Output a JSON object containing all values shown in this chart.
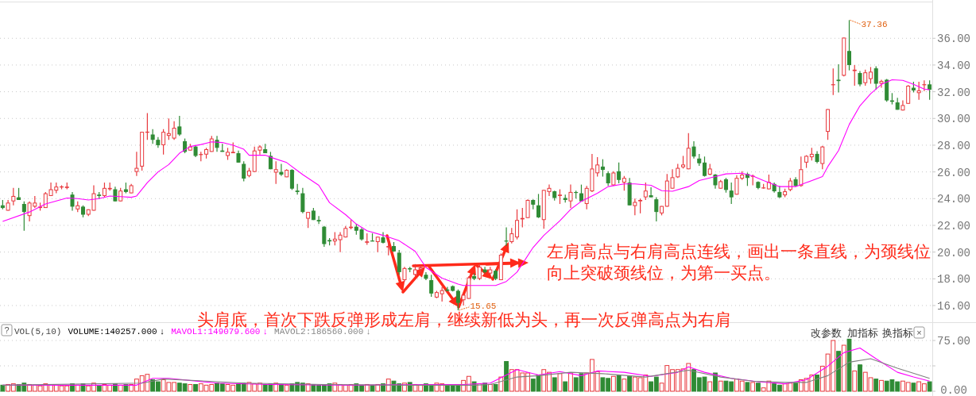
{
  "chart_data": [
    {
      "type": "candlestick",
      "categories": [
        null,
        null,
        null,
        null,
        null,
        null,
        null,
        null,
        null,
        null,
        null,
        null,
        null,
        null,
        null,
        null,
        null,
        null,
        null,
        null,
        null,
        null,
        null,
        null,
        null,
        null,
        null,
        null,
        null,
        null,
        null,
        null,
        null,
        null,
        null,
        null,
        null,
        null,
        null,
        null,
        null,
        null,
        null,
        null,
        null,
        null,
        null,
        null,
        null,
        null,
        null,
        null,
        null,
        null,
        null,
        null,
        null,
        null,
        null,
        null,
        null,
        null,
        null,
        null,
        null,
        null,
        null,
        null,
        null,
        null,
        null,
        null,
        null,
        null,
        null,
        null,
        null,
        null,
        null,
        null,
        null,
        null,
        null,
        null,
        null,
        null,
        null,
        null,
        null,
        null,
        null,
        null,
        null,
        null,
        null,
        null,
        null,
        null,
        null,
        null,
        null,
        null,
        null,
        null,
        null,
        null,
        null,
        null,
        null,
        null,
        null,
        null,
        null,
        null,
        null,
        null,
        null,
        null,
        null,
        null,
        null,
        null,
        null,
        null,
        null,
        null,
        null,
        null,
        null,
        null,
        null,
        null,
        null,
        null,
        null,
        null,
        null,
        null,
        null,
        null,
        null,
        null,
        null,
        null,
        null,
        null,
        null,
        null,
        null,
        null,
        null,
        null,
        null,
        null,
        null,
        null,
        null,
        null,
        null,
        null,
        null,
        null,
        null,
        null,
        null,
        null,
        null,
        null,
        null,
        null,
        null,
        null,
        null,
        null
      ],
      "ohlc": [
        [
          23.5,
          23.9,
          23.2,
          23.3
        ],
        [
          23.1,
          23.9,
          23.1,
          23.7
        ],
        [
          23.8,
          24.8,
          23.5,
          24.2
        ],
        [
          24.1,
          24.8,
          23.9,
          23.9
        ],
        [
          23.6,
          23.8,
          21.6,
          23.0
        ],
        [
          22.7,
          23.8,
          22.3,
          23.7
        ],
        [
          23.4,
          24.2,
          23.3,
          23.7
        ],
        [
          23.3,
          23.7,
          23.1,
          23.4
        ],
        [
          23.3,
          24.5,
          23.3,
          24.4
        ],
        [
          24.2,
          25.2,
          24.2,
          24.7
        ],
        [
          24.6,
          25.2,
          24.4,
          24.9
        ],
        [
          24.85,
          25.0,
          24.7,
          24.9
        ],
        [
          24.8,
          25.2,
          24.7,
          24.9
        ],
        [
          24.3,
          24.5,
          23.1,
          23.4
        ],
        [
          23.2,
          23.8,
          23.0,
          23.5
        ],
        [
          23.4,
          23.5,
          22.6,
          22.8
        ],
        [
          22.8,
          23.2,
          22.7,
          23.2
        ],
        [
          23.1,
          25.0,
          23.1,
          24.4
        ],
        [
          24.3,
          24.5,
          24.0,
          24.2
        ],
        [
          24.2,
          25.2,
          24.1,
          24.8
        ],
        [
          24.7,
          25.2,
          24.6,
          24.8
        ],
        [
          24.7,
          24.9,
          23.8,
          23.8
        ],
        [
          23.8,
          24.8,
          23.8,
          24.6
        ],
        [
          24.7,
          25.2,
          24.4,
          24.5
        ],
        [
          24.4,
          25.1,
          24.4,
          25.0
        ],
        [
          26.0,
          27.5,
          25.7,
          26.3
        ],
        [
          26.4,
          29.0,
          26.1,
          29.0
        ],
        [
          28.95,
          30.4,
          28.4,
          29.0
        ],
        [
          28.8,
          29.2,
          28.1,
          28.4
        ],
        [
          28.4,
          28.6,
          27.8,
          28.0
        ],
        [
          28.0,
          29.2,
          27.3,
          29.0
        ],
        [
          28.7,
          30.0,
          28.4,
          28.9
        ],
        [
          28.5,
          29.8,
          28.4,
          29.3
        ],
        [
          29.4,
          30.2,
          28.7,
          28.8
        ],
        [
          28.3,
          28.5,
          27.4,
          27.5
        ],
        [
          27.6,
          28.1,
          27.6,
          27.9
        ],
        [
          27.9,
          28.0,
          27.1,
          27.2
        ],
        [
          27.3,
          27.5,
          26.8,
          27.3
        ],
        [
          27.3,
          27.8,
          27.0,
          27.7
        ],
        [
          27.5,
          28.7,
          27.5,
          28.5
        ],
        [
          28.4,
          28.7,
          27.5,
          27.8
        ],
        [
          27.6,
          28.1,
          27.5,
          27.5
        ],
        [
          27.2,
          27.8,
          26.9,
          27.5
        ],
        [
          27.4,
          28.2,
          27.4,
          27.5
        ],
        [
          27.4,
          27.6,
          26.7,
          26.7
        ],
        [
          26.6,
          26.8,
          25.3,
          25.5
        ],
        [
          25.7,
          26.3,
          25.6,
          26.1
        ],
        [
          26.0,
          27.9,
          26.0,
          27.6
        ],
        [
          27.6,
          28.0,
          27.3,
          27.9
        ],
        [
          27.7,
          28.1,
          27.4,
          27.4
        ],
        [
          27.2,
          27.5,
          26.2,
          26.2
        ],
        [
          25.95,
          26.8,
          25.1,
          26.2
        ],
        [
          26.0,
          26.6,
          25.7,
          25.8
        ],
        [
          25.6,
          26.2,
          25.6,
          26.15
        ],
        [
          26.15,
          26.2,
          24.65,
          24.75
        ],
        [
          24.6,
          25.1,
          24.3,
          24.5
        ],
        [
          24.4,
          24.8,
          22.9,
          23.0
        ],
        [
          22.5,
          23.0,
          21.8,
          23.0
        ],
        [
          23.1,
          23.3,
          22.4,
          22.4
        ],
        [
          22.4,
          22.7,
          22.1,
          22.3
        ],
        [
          21.9,
          21.95,
          20.4,
          20.6
        ],
        [
          20.9,
          21.05,
          20.5,
          20.8
        ],
        [
          20.8,
          21.5,
          20.5,
          21.0
        ],
        [
          20.9,
          21.5,
          20.0,
          21.3
        ],
        [
          21.1,
          21.95,
          21.1,
          21.8
        ],
        [
          21.8,
          22.4,
          21.7,
          21.9
        ],
        [
          21.9,
          22.1,
          21.3,
          21.6
        ],
        [
          21.7,
          21.8,
          20.85,
          20.95
        ],
        [
          20.7,
          21.4,
          20.55,
          20.8
        ],
        [
          20.85,
          21.4,
          20.8,
          20.8
        ],
        [
          20.75,
          21.15,
          20.0,
          21.15
        ],
        [
          21.1,
          21.5,
          20.65,
          20.7
        ],
        [
          20.35,
          20.95,
          19.75,
          20.45
        ],
        [
          20.45,
          20.75,
          20.05,
          20.05
        ],
        [
          19.95,
          20.15,
          18.3,
          18.5
        ],
        [
          17.9,
          18.9,
          17.8,
          18.8
        ],
        [
          18.8,
          18.9,
          18.5,
          18.7
        ],
        [
          18.3,
          19.1,
          18.2,
          18.7
        ],
        [
          18.7,
          19.0,
          18.5,
          18.85
        ],
        [
          18.3,
          18.5,
          17.9,
          18.0
        ],
        [
          17.9,
          18.3,
          16.65,
          16.9
        ],
        [
          16.6,
          17.1,
          16.55,
          17.0
        ],
        [
          16.85,
          17.4,
          16.3,
          17.15
        ],
        [
          17.2,
          17.4,
          17.05,
          17.1
        ],
        [
          17.45,
          17.5,
          17.05,
          17.1
        ],
        [
          17.1,
          17.2,
          15.65,
          16.2
        ],
        [
          16.4,
          16.9,
          16.0,
          16.8
        ],
        [
          16.5,
          18.2,
          16.5,
          18.1
        ],
        [
          18.2,
          18.4,
          17.9,
          18.0
        ],
        [
          18.0,
          19.1,
          17.9,
          18.9
        ],
        [
          18.7,
          18.9,
          18.4,
          18.5
        ],
        [
          18.4,
          18.9,
          18.3,
          18.7
        ],
        [
          18.6,
          18.7,
          17.9,
          18.0
        ],
        [
          17.9,
          19.9,
          17.9,
          19.8
        ],
        [
          20.85,
          21.85,
          20.45,
          20.8
        ],
        [
          20.75,
          21.8,
          20.65,
          21.4
        ],
        [
          21.1,
          23.2,
          20.95,
          22.4
        ],
        [
          22.45,
          23.3,
          21.85,
          22.55
        ],
        [
          22.55,
          23.95,
          22.55,
          23.9
        ],
        [
          23.9,
          23.95,
          23.2,
          23.55
        ],
        [
          23.5,
          24.35,
          22.55,
          22.6
        ],
        [
          22.4,
          24.65,
          21.75,
          24.65
        ],
        [
          24.5,
          25.05,
          24.2,
          24.8
        ],
        [
          24.55,
          24.6,
          23.85,
          24.05
        ],
        [
          24.2,
          24.7,
          23.6,
          24.3
        ],
        [
          24.05,
          24.3,
          23.7,
          23.9
        ],
        [
          23.8,
          25.05,
          23.3,
          24.5
        ],
        [
          24.47,
          24.6,
          24.0,
          24.45
        ],
        [
          24.4,
          25.05,
          23.8,
          23.8
        ],
        [
          23.6,
          24.95,
          23.2,
          24.8
        ],
        [
          24.55,
          27.35,
          24.5,
          26.25
        ],
        [
          25.9,
          27.1,
          25.65,
          26.55
        ],
        [
          26.4,
          26.95,
          25.65,
          26.15
        ],
        [
          25.9,
          26.05,
          24.95,
          25.15
        ],
        [
          25.0,
          26.05,
          24.95,
          25.95
        ],
        [
          26.05,
          26.7,
          25.15,
          25.4
        ],
        [
          25.2,
          25.7,
          24.6,
          25.55
        ],
        [
          25.2,
          25.55,
          23.5,
          23.5
        ],
        [
          23.45,
          24.0,
          22.75,
          23.75
        ],
        [
          23.8,
          24.0,
          22.9,
          23.9
        ],
        [
          24.1,
          25.2,
          23.9,
          24.6
        ],
        [
          24.25,
          24.85,
          24.1,
          24.1
        ],
        [
          23.95,
          24.1,
          22.3,
          23.0
        ],
        [
          22.9,
          23.45,
          22.75,
          23.45
        ],
        [
          23.4,
          25.85,
          23.4,
          25.35
        ],
        [
          24.75,
          26.2,
          24.75,
          25.6
        ],
        [
          25.6,
          26.6,
          25.55,
          26.3
        ],
        [
          26.35,
          27.2,
          26.25,
          26.55
        ],
        [
          26.2,
          28.9,
          26.2,
          27.8
        ],
        [
          27.9,
          28.3,
          27.0,
          27.15
        ],
        [
          27.0,
          27.35,
          26.45,
          26.65
        ],
        [
          26.7,
          27.15,
          25.65,
          25.7
        ],
        [
          25.8,
          26.6,
          25.75,
          26.25
        ],
        [
          25.8,
          25.85,
          24.75,
          25.0
        ],
        [
          24.75,
          25.4,
          24.75,
          25.3
        ],
        [
          25.45,
          25.55,
          24.45,
          24.65
        ],
        [
          24.6,
          25.2,
          23.6,
          24.1
        ],
        [
          24.3,
          25.75,
          24.3,
          25.55
        ],
        [
          25.5,
          26.05,
          25.4,
          25.8
        ],
        [
          25.85,
          25.95,
          24.95,
          25.55
        ],
        [
          25.65,
          25.8,
          25.0,
          25.7
        ],
        [
          25.25,
          25.3,
          24.7,
          24.8
        ],
        [
          24.8,
          25.1,
          24.75,
          24.8
        ],
        [
          24.7,
          25.8,
          24.7,
          25.25
        ],
        [
          25.1,
          25.2,
          24.45,
          24.55
        ],
        [
          24.5,
          24.95,
          24.05,
          24.1
        ],
        [
          24.25,
          24.75,
          24.1,
          24.55
        ],
        [
          24.65,
          25.55,
          24.55,
          25.35
        ],
        [
          25.45,
          25.6,
          24.9,
          24.95
        ],
        [
          24.95,
          27.15,
          24.9,
          26.2
        ],
        [
          26.7,
          27.25,
          26.3,
          27.2
        ],
        [
          27.1,
          27.8,
          26.85,
          27.35
        ],
        [
          27.35,
          27.55,
          26.65,
          26.75
        ],
        [
          26.6,
          27.95,
          26.2,
          27.9
        ],
        [
          29.0,
          30.7,
          28.4,
          30.7
        ],
        [
          32.5,
          33.75,
          31.75,
          32.55
        ],
        [
          32.9,
          34.05,
          31.95,
          32.8
        ],
        [
          33.2,
          36.05,
          33.15,
          36.05
        ],
        [
          35.05,
          37.36,
          33.6,
          34.0
        ],
        [
          33.55,
          34.0,
          32.45,
          33.65
        ],
        [
          33.4,
          33.55,
          32.4,
          32.55
        ],
        [
          32.65,
          33.65,
          32.45,
          33.45
        ],
        [
          32.95,
          33.85,
          32.6,
          33.5
        ],
        [
          33.75,
          33.9,
          32.15,
          32.6
        ],
        [
          32.6,
          32.9,
          32.3,
          32.8
        ],
        [
          32.9,
          32.95,
          31.25,
          31.35
        ],
        [
          31.35,
          31.9,
          31.05,
          31.25
        ],
        [
          31.2,
          31.55,
          30.65,
          30.65
        ],
        [
          30.6,
          31.35,
          30.6,
          31.0
        ],
        [
          31.1,
          32.5,
          31.1,
          32.45
        ],
        [
          32.3,
          32.75,
          31.95,
          32.1
        ],
        [
          31.9,
          32.75,
          31.4,
          32.1
        ],
        [
          32.5,
          32.85,
          32.05,
          32.55
        ],
        [
          32.55,
          32.85,
          31.4,
          32.15
        ]
      ],
      "series": [
        {
          "type": "line",
          "color": "#ff00ff",
          "values": [
            22.3,
            null,
            null,
            null,
            null,
            23.0,
            null,
            null,
            23.6,
            null,
            null,
            null,
            24.05,
            null,
            24.0,
            null,
            23.9,
            null,
            24.0,
            null,
            24.2,
            null,
            24.15,
            null,
            24.1,
            24.2,
            null,
            25.2,
            null,
            26.0,
            null,
            26.55,
            null,
            27.4,
            null,
            27.9,
            null,
            28.05,
            null,
            28.25,
            null,
            28.2,
            null,
            28.0,
            null,
            27.7,
            27.25,
            null,
            null,
            27.25,
            27.1,
            null,
            null,
            26.7,
            null,
            null,
            25.8,
            null,
            null,
            25.0,
            null,
            23.7,
            null,
            null,
            22.8,
            null,
            22.1,
            null,
            21.6,
            null,
            null,
            21.25,
            null,
            null,
            20.85,
            null,
            null,
            20.05,
            null,
            18.85,
            null,
            null,
            18.05,
            null,
            null,
            17.6,
            17.5,
            null,
            null,
            null,
            null,
            17.5,
            17.5,
            null,
            17.8,
            null,
            18.5,
            null,
            null,
            20.35,
            null,
            21.25,
            null,
            null,
            22.35,
            null,
            23.2,
            null,
            23.8,
            null,
            null,
            24.4,
            null,
            24.9,
            null,
            null,
            25.1,
            null,
            25.1,
            null,
            null,
            25.0,
            null,
            24.6,
            null,
            24.55,
            null,
            null,
            24.9,
            null,
            25.35,
            null,
            null,
            25.65,
            null,
            25.85,
            null,
            null,
            25.9,
            null,
            25.7,
            null,
            25.35,
            null,
            null,
            24.9,
            null,
            null,
            24.9,
            null,
            25.2,
            null,
            null,
            25.65,
            26.4,
            null,
            27.6,
            null,
            29.55,
            null,
            30.95,
            null,
            31.85,
            null,
            32.55,
            null,
            32.9,
            null,
            32.85,
            null,
            32.55,
            null,
            32.2,
            32.15
          ]
        }
      ],
      "ylim": [
        14.8,
        38.7
      ],
      "yticks": [
        {
          "value": 16,
          "label": "16.00"
        },
        {
          "value": 18,
          "label": "18.00"
        },
        {
          "value": 20,
          "label": "20.00"
        },
        {
          "value": 22,
          "label": "22.00"
        },
        {
          "value": 24,
          "label": "24.00"
        },
        {
          "value": 26,
          "label": "26.00"
        },
        {
          "value": 28,
          "label": "28.00"
        },
        {
          "value": 30,
          "label": "30.00"
        },
        {
          "value": 32,
          "label": "32.00"
        },
        {
          "value": 34,
          "label": "34.00"
        },
        {
          "value": 36,
          "label": "36.00"
        }
      ],
      "grid": "y",
      "marker": "none",
      "annotations": [
        "37.36",
        "15.65",
        "头肩底，首次下跌反弹形成左肩，继续新低为头，再一次反弹高点为右肩",
        "左肩高点与右肩高点连线，画出一条直线，为颈线位",
        "向上突破颈线位，为第一买点。"
      ]
    },
    {
      "type": "bar",
      "categories": [
        null,
        null,
        null,
        null,
        null,
        null,
        null,
        null,
        null,
        null,
        null,
        null,
        null,
        null,
        null,
        null,
        null,
        null,
        null,
        null,
        null,
        null,
        null,
        null,
        null,
        null,
        null,
        null,
        null,
        null,
        null,
        null,
        null,
        null,
        null,
        null,
        null,
        null,
        null,
        null,
        null,
        null,
        null,
        null,
        null,
        null,
        null,
        null,
        null,
        null,
        null,
        null,
        null,
        null,
        null,
        null,
        null,
        null,
        null,
        null,
        null,
        null,
        null,
        null,
        null,
        null,
        null,
        null,
        null,
        null,
        null,
        null,
        null,
        null,
        null,
        null,
        null,
        null,
        null,
        null,
        null,
        null,
        null,
        null,
        null,
        null,
        null,
        null,
        null,
        null,
        null,
        null,
        null,
        null,
        null,
        null,
        null,
        null,
        null,
        null,
        null,
        null,
        null,
        null,
        null,
        null,
        null,
        null,
        null,
        null,
        null,
        null,
        null,
        null,
        null,
        null,
        null,
        null,
        null,
        null,
        null,
        null,
        null,
        null,
        null,
        null,
        null,
        null,
        null,
        null,
        null,
        null,
        null,
        null,
        null,
        null,
        null,
        null,
        null,
        null,
        null,
        null,
        null,
        null,
        null,
        null,
        null,
        null,
        null,
        null,
        null,
        null,
        null,
        null,
        null,
        null,
        null,
        null,
        null,
        null,
        null,
        null,
        null,
        null,
        null,
        null,
        null,
        null,
        null,
        null,
        null,
        null,
        null,
        null
      ],
      "series": [
        {
          "colors": [
            "#2f8b35",
            "#e8383d",
            "#e8383d",
            "#2f8b35",
            "#2f8b35",
            "#e8383d",
            "#e8383d",
            "#e8383d",
            "#e8383d",
            "#e8383d",
            "#e8383d",
            "#e8383d",
            "#e8383d",
            "#2f8b35",
            "#e8383d",
            "#2f8b35",
            "#e8383d",
            "#e8383d",
            "#2f8b35",
            "#e8383d",
            "#e8383d",
            "#2f8b35",
            "#e8383d",
            "#2f8b35",
            "#e8383d",
            "#e8383d",
            "#e8383d",
            "#e8383d",
            "#2f8b35",
            "#2f8b35",
            "#e8383d",
            "#e8383d",
            "#e8383d",
            "#2f8b35",
            "#2f8b35",
            "#e8383d",
            "#2f8b35",
            "#e8383d",
            "#e8383d",
            "#e8383d",
            "#2f8b35",
            "#2f8b35",
            "#e8383d",
            "#e8383d",
            "#2f8b35",
            "#2f8b35",
            "#e8383d",
            "#e8383d",
            "#e8383d",
            "#2f8b35",
            "#2f8b35",
            "#e8383d",
            "#2f8b35",
            "#e8383d",
            "#2f8b35",
            "#2f8b35",
            "#2f8b35",
            "#e8383d",
            "#2f8b35",
            "#2f8b35",
            "#2f8b35",
            "#2f8b35",
            "#e8383d",
            "#e8383d",
            "#e8383d",
            "#e8383d",
            "#2f8b35",
            "#2f8b35",
            "#e8383d",
            "#2f8b35",
            "#e8383d",
            "#2f8b35",
            "#e8383d",
            "#2f8b35",
            "#2f8b35",
            "#e8383d",
            "#2f8b35",
            "#e8383d",
            "#e8383d",
            "#2f8b35",
            "#2f8b35",
            "#e8383d",
            "#e8383d",
            "#2f8b35",
            "#2f8b35",
            "#2f8b35",
            "#e8383d",
            "#e8383d",
            "#2f8b35",
            "#e8383d",
            "#2f8b35",
            "#e8383d",
            "#2f8b35",
            "#e8383d",
            "#2f8b35",
            "#e8383d",
            "#e8383d",
            "#e8383d",
            "#e8383d",
            "#2f8b35",
            "#2f8b35",
            "#e8383d",
            "#e8383d",
            "#2f8b35",
            "#e8383d",
            "#2f8b35",
            "#e8383d",
            "#2f8b35",
            "#2f8b35",
            "#e8383d",
            "#e8383d",
            "#e8383d",
            "#2f8b35",
            "#2f8b35",
            "#e8383d",
            "#2f8b35",
            "#e8383d",
            "#2f8b35",
            "#e8383d",
            "#e8383d",
            "#e8383d",
            "#2f8b35",
            "#2f8b35",
            "#e8383d",
            "#e8383d",
            "#e8383d",
            "#e8383d",
            "#e8383d",
            "#e8383d",
            "#2f8b35",
            "#2f8b35",
            "#2f8b35",
            "#e8383d",
            "#2f8b35",
            "#e8383d",
            "#2f8b35",
            "#2f8b35",
            "#e8383d",
            "#e8383d",
            "#2f8b35",
            "#e8383d",
            "#2f8b35",
            "#e8383d",
            "#e8383d",
            "#2f8b35",
            "#2f8b35",
            "#e8383d",
            "#e8383d",
            "#2f8b35",
            "#e8383d",
            "#e8383d",
            "#e8383d",
            "#2f8b35",
            "#e8383d",
            "#e8383d",
            "#e8383d",
            "#2f8b35",
            "#e8383d",
            "#2f8b35",
            "#e8383d",
            "#2f8b35",
            "#e8383d",
            "#e8383d",
            "#2f8b35",
            "#e8383d",
            "#2f8b35",
            "#2f8b35",
            "#2f8b35",
            "#e8383d",
            "#e8383d",
            "#2f8b35",
            "#e8383d",
            "#e8383d",
            "#2f8b35"
          ],
          "values": [
            9,
            10,
            11,
            10,
            12,
            10,
            9,
            8,
            11,
            9,
            9,
            8,
            8,
            11,
            9,
            11,
            8,
            12,
            8,
            10,
            9,
            11,
            9,
            10,
            10,
            18,
            23,
            25,
            17,
            14,
            17,
            13,
            13,
            12,
            11,
            10,
            10,
            11,
            9,
            10,
            12,
            11,
            10,
            9,
            11,
            12,
            13,
            11,
            12,
            10,
            11,
            12,
            10,
            9,
            11,
            13,
            12,
            11,
            10,
            9,
            10,
            11,
            12,
            10,
            9,
            10,
            11,
            9,
            10,
            9,
            10,
            11,
            18,
            15,
            11,
            12,
            13,
            10,
            9,
            11,
            10,
            12,
            11,
            10,
            9,
            10,
            16,
            22,
            14,
            11,
            12,
            10,
            10,
            21,
            44,
            32,
            32,
            27,
            27,
            18,
            24,
            32,
            28,
            20,
            26,
            14,
            27,
            20,
            26,
            27,
            47,
            29,
            20,
            19,
            22,
            23,
            18,
            22,
            21,
            20,
            24,
            14,
            21,
            12,
            38,
            32,
            32,
            33,
            41,
            32,
            20,
            21,
            14,
            27,
            15,
            15,
            14,
            18,
            15,
            13,
            13,
            12,
            5,
            15,
            11,
            9,
            11,
            12,
            12,
            17,
            19,
            24,
            24,
            37,
            55,
            75,
            59,
            68,
            77,
            30,
            39,
            28,
            20,
            18,
            16,
            15,
            17,
            14,
            15,
            13,
            12,
            14,
            11,
            14
          ]
        },
        {
          "type": "line",
          "color": "#ff00ff",
          "values": [
            9,
            null,
            null,
            null,
            null,
            null,
            null,
            null,
            null,
            null,
            null,
            null,
            null,
            null,
            null,
            null,
            null,
            null,
            null,
            null,
            null,
            null,
            null,
            null,
            null,
            9,
            null,
            null,
            19,
            null,
            null,
            19,
            null,
            null,
            null,
            null,
            null,
            null,
            null,
            null,
            12,
            null,
            null,
            null,
            null,
            null,
            null,
            null,
            null,
            null,
            10,
            null,
            null,
            null,
            null,
            null,
            null,
            null,
            null,
            null,
            null,
            null,
            null,
            null,
            null,
            9,
            null,
            null,
            null,
            null,
            null,
            null,
            null,
            null,
            null,
            null,
            null,
            null,
            null,
            null,
            10,
            null,
            null,
            null,
            null,
            null,
            10,
            null,
            null,
            null,
            null,
            12,
            null,
            null,
            null,
            null,
            32,
            null,
            null,
            null,
            24,
            null,
            null,
            null,
            29,
            null,
            null,
            null,
            23,
            null,
            null,
            30,
            null,
            null,
            null,
            null,
            28,
            null,
            null,
            null,
            null,
            22,
            null,
            null,
            null,
            null,
            28,
            null,
            36,
            null,
            null,
            28,
            null,
            null,
            null,
            null,
            19,
            null,
            null,
            null,
            null,
            14,
            null,
            null,
            null,
            null,
            11,
            null,
            null,
            null,
            17,
            null,
            null,
            null,
            37,
            null,
            null,
            57,
            null,
            null,
            64,
            null,
            null,
            48,
            null,
            null,
            null,
            28,
            null,
            null,
            21,
            null,
            null,
            15
          ]
        },
        {
          "type": "line",
          "color": "#808080",
          "values": [
            9,
            null,
            null,
            null,
            null,
            null,
            null,
            null,
            null,
            null,
            null,
            null,
            null,
            null,
            null,
            null,
            null,
            null,
            null,
            null,
            null,
            null,
            null,
            null,
            null,
            null,
            12,
            null,
            null,
            null,
            18,
            null,
            null,
            null,
            null,
            null,
            null,
            null,
            15,
            null,
            null,
            null,
            null,
            null,
            null,
            12,
            null,
            null,
            null,
            null,
            null,
            null,
            null,
            null,
            null,
            null,
            null,
            null,
            null,
            null,
            10,
            null,
            null,
            null,
            null,
            null,
            null,
            null,
            null,
            null,
            null,
            null,
            null,
            null,
            null,
            9,
            null,
            null,
            null,
            null,
            null,
            null,
            null,
            null,
            null,
            null,
            null,
            null,
            9,
            null,
            null,
            10,
            null,
            null,
            null,
            null,
            21,
            null,
            null,
            null,
            23,
            null,
            null,
            null,
            null,
            null,
            28,
            null,
            null,
            null,
            null,
            null,
            26,
            null,
            null,
            null,
            null,
            null,
            null,
            null,
            21,
            null,
            null,
            null,
            null,
            null,
            null,
            null,
            31,
            null,
            null,
            null,
            null,
            null,
            21,
            null,
            null,
            null,
            null,
            null,
            15,
            null,
            null,
            null,
            null,
            null,
            13,
            null,
            null,
            null,
            13,
            null,
            null,
            null,
            23,
            null,
            null,
            null,
            43,
            null,
            null,
            null,
            48,
            null,
            null,
            null,
            null,
            34,
            null,
            null,
            null,
            null,
            null,
            19
          ]
        }
      ],
      "ylim": [
        0,
        95
      ],
      "yticks": [
        {
          "value": 0,
          "label": "0.00"
        },
        {
          "value": 37.5,
          "label": null
        },
        {
          "value": 75,
          "label": "75.00"
        }
      ],
      "grid": "y",
      "annotations": [
        "?",
        "VOL(5,10)",
        "VOLUME:140257.000",
        "↓",
        "MAVOL1:149079.600",
        "↓",
        "MAVOL2:186560.000",
        "↓",
        "改参数",
        "加指标",
        "换指标",
        "×"
      ]
    }
  ]
}
